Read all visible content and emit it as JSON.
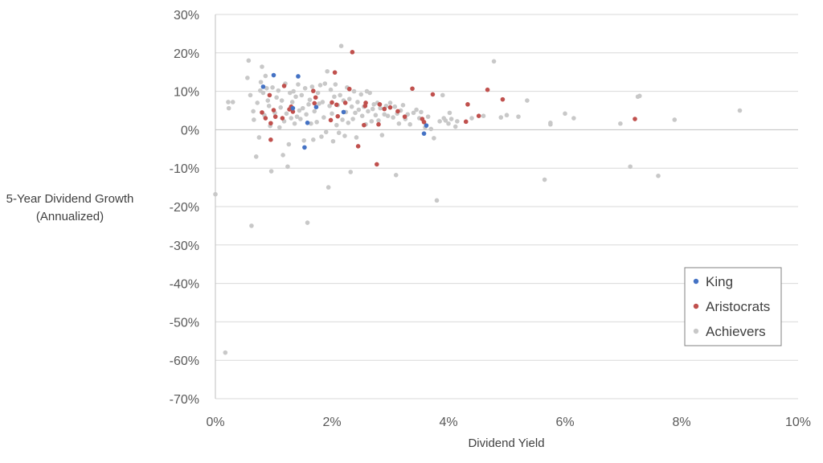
{
  "chart_data": {
    "type": "scatter",
    "xlabel": "Dividend Yield",
    "ylabel": [
      "5-Year Dividend Growth",
      "(Annualized)"
    ],
    "xlim": [
      0,
      10
    ],
    "ylim": [
      -70,
      30
    ],
    "x_ticks": [
      0,
      2,
      4,
      6,
      8,
      10
    ],
    "x_tick_labels": [
      "0%",
      "2%",
      "4%",
      "6%",
      "8%",
      "10%"
    ],
    "y_ticks": [
      30,
      20,
      10,
      0,
      -10,
      -20,
      -30,
      -40,
      -50,
      -60,
      -70
    ],
    "y_tick_labels": [
      "30%",
      "20%",
      "10%",
      "0%",
      "-10%",
      "-20%",
      "-30%",
      "-40%",
      "-50%",
      "-60%",
      "-70%"
    ],
    "grid": "horizontal",
    "legend_position": "bottom-right",
    "series": [
      {
        "name": "King",
        "color": "#4472C4",
        "points": [
          [
            0.82,
            11.2
          ],
          [
            1.0,
            14.2
          ],
          [
            1.42,
            13.9
          ],
          [
            1.33,
            5.6
          ],
          [
            1.73,
            5.9
          ],
          [
            1.58,
            1.8
          ],
          [
            1.53,
            -4.6
          ],
          [
            2.2,
            4.6
          ],
          [
            3.58,
            -1.0
          ],
          [
            3.62,
            1.1
          ]
        ]
      },
      {
        "name": "Aristocrats",
        "color": "#C0504D",
        "points": [
          [
            0.8,
            4.5
          ],
          [
            0.86,
            3.0
          ],
          [
            0.93,
            9.0
          ],
          [
            0.95,
            1.7
          ],
          [
            0.95,
            -2.6
          ],
          [
            1.0,
            5.1
          ],
          [
            1.03,
            3.4
          ],
          [
            1.15,
            3.0
          ],
          [
            1.18,
            11.4
          ],
          [
            1.27,
            5.3
          ],
          [
            1.3,
            6.0
          ],
          [
            1.33,
            4.7
          ],
          [
            1.68,
            10.1
          ],
          [
            1.7,
            6.9
          ],
          [
            1.72,
            8.4
          ],
          [
            1.98,
            2.5
          ],
          [
            2.0,
            7.1
          ],
          [
            2.05,
            14.9
          ],
          [
            2.08,
            6.5
          ],
          [
            2.1,
            3.5
          ],
          [
            2.23,
            7.0
          ],
          [
            2.3,
            10.6
          ],
          [
            2.35,
            20.2
          ],
          [
            2.45,
            -4.3
          ],
          [
            2.55,
            1.2
          ],
          [
            2.57,
            6.2
          ],
          [
            2.58,
            7.0
          ],
          [
            2.77,
            -9.0
          ],
          [
            2.8,
            1.4
          ],
          [
            2.82,
            6.6
          ],
          [
            2.9,
            5.4
          ],
          [
            3.0,
            5.8
          ],
          [
            3.13,
            4.8
          ],
          [
            3.25,
            3.4
          ],
          [
            3.38,
            10.7
          ],
          [
            3.55,
            2.8
          ],
          [
            3.58,
            2.0
          ],
          [
            3.73,
            9.2
          ],
          [
            4.3,
            2.1
          ],
          [
            4.33,
            6.6
          ],
          [
            4.52,
            3.6
          ],
          [
            4.67,
            10.4
          ],
          [
            4.93,
            7.9
          ],
          [
            7.2,
            2.8
          ]
        ]
      },
      {
        "name": "Achievers",
        "color": "#C8C8C8",
        "points": [
          [
            0.0,
            -16.8
          ],
          [
            0.17,
            -58.0
          ],
          [
            0.23,
            5.6
          ],
          [
            0.22,
            7.2
          ],
          [
            0.3,
            7.2
          ],
          [
            0.55,
            13.5
          ],
          [
            0.57,
            18.0
          ],
          [
            0.6,
            9.0
          ],
          [
            0.62,
            -25.0
          ],
          [
            0.65,
            4.8
          ],
          [
            0.66,
            2.6
          ],
          [
            0.7,
            -7.0
          ],
          [
            0.72,
            7.0
          ],
          [
            0.75,
            -2.0
          ],
          [
            0.77,
            10.2
          ],
          [
            0.78,
            12.4
          ],
          [
            0.8,
            16.4
          ],
          [
            0.82,
            9.6
          ],
          [
            0.84,
            3.8
          ],
          [
            0.86,
            14.0
          ],
          [
            0.88,
            10.8
          ],
          [
            0.9,
            7.6
          ],
          [
            0.92,
            6.2
          ],
          [
            0.94,
            1.0
          ],
          [
            0.96,
            -10.8
          ],
          [
            0.98,
            11.0
          ],
          [
            1.02,
            4.4
          ],
          [
            1.05,
            8.4
          ],
          [
            1.08,
            10.2
          ],
          [
            1.1,
            0.6
          ],
          [
            1.12,
            5.8
          ],
          [
            1.14,
            7.6
          ],
          [
            1.16,
            -6.6
          ],
          [
            1.18,
            2.2
          ],
          [
            1.2,
            12.0
          ],
          [
            1.22,
            4.2
          ],
          [
            1.24,
            -9.6
          ],
          [
            1.26,
            -3.8
          ],
          [
            1.28,
            9.6
          ],
          [
            1.3,
            3.0
          ],
          [
            1.32,
            7.2
          ],
          [
            1.34,
            10.0
          ],
          [
            1.36,
            1.6
          ],
          [
            1.38,
            8.6
          ],
          [
            1.4,
            3.4
          ],
          [
            1.42,
            11.8
          ],
          [
            1.44,
            5.0
          ],
          [
            1.46,
            2.8
          ],
          [
            1.48,
            9.0
          ],
          [
            1.5,
            5.6
          ],
          [
            1.52,
            -2.8
          ],
          [
            1.54,
            10.8
          ],
          [
            1.56,
            4.0
          ],
          [
            1.58,
            -24.2
          ],
          [
            1.6,
            6.6
          ],
          [
            1.62,
            7.8
          ],
          [
            1.64,
            1.6
          ],
          [
            1.66,
            11.2
          ],
          [
            1.68,
            -2.6
          ],
          [
            1.7,
            4.8
          ],
          [
            1.74,
            2.0
          ],
          [
            1.76,
            9.6
          ],
          [
            1.78,
            6.8
          ],
          [
            1.8,
            11.6
          ],
          [
            1.82,
            -1.8
          ],
          [
            1.84,
            7.2
          ],
          [
            1.86,
            3.2
          ],
          [
            1.88,
            12.0
          ],
          [
            1.9,
            -0.6
          ],
          [
            1.92,
            15.2
          ],
          [
            1.94,
            -15.0
          ],
          [
            1.96,
            6.2
          ],
          [
            1.98,
            10.4
          ],
          [
            2.0,
            4.2
          ],
          [
            2.02,
            -3.0
          ],
          [
            2.04,
            8.6
          ],
          [
            2.06,
            11.8
          ],
          [
            2.08,
            1.2
          ],
          [
            2.1,
            6.4
          ],
          [
            2.12,
            -0.8
          ],
          [
            2.14,
            9.0
          ],
          [
            2.16,
            21.8
          ],
          [
            2.18,
            2.6
          ],
          [
            2.2,
            7.6
          ],
          [
            2.22,
            -1.6
          ],
          [
            2.24,
            4.6
          ],
          [
            2.26,
            11.0
          ],
          [
            2.28,
            1.8
          ],
          [
            2.3,
            8.0
          ],
          [
            2.32,
            -11.0
          ],
          [
            2.34,
            6.0
          ],
          [
            2.36,
            2.8
          ],
          [
            2.38,
            10.0
          ],
          [
            2.4,
            4.4
          ],
          [
            2.42,
            -2.0
          ],
          [
            2.44,
            7.2
          ],
          [
            2.46,
            5.2
          ],
          [
            2.5,
            9.2
          ],
          [
            2.52,
            3.6
          ],
          [
            2.55,
            6.0
          ],
          [
            2.58,
            1.4
          ],
          [
            2.6,
            10.0
          ],
          [
            2.62,
            4.8
          ],
          [
            2.65,
            9.6
          ],
          [
            2.68,
            2.2
          ],
          [
            2.7,
            5.4
          ],
          [
            2.72,
            6.6
          ],
          [
            2.75,
            3.8
          ],
          [
            2.78,
            7.0
          ],
          [
            2.8,
            2.4
          ],
          [
            2.83,
            5.6
          ],
          [
            2.86,
            -1.4
          ],
          [
            2.9,
            4.0
          ],
          [
            2.93,
            6.2
          ],
          [
            2.96,
            3.6
          ],
          [
            3.0,
            7.0
          ],
          [
            3.05,
            3.2
          ],
          [
            3.08,
            6.0
          ],
          [
            3.1,
            -11.8
          ],
          [
            3.12,
            4.2
          ],
          [
            3.15,
            1.6
          ],
          [
            3.18,
            5.0
          ],
          [
            3.22,
            6.4
          ],
          [
            3.26,
            2.8
          ],
          [
            3.3,
            4.0
          ],
          [
            3.34,
            1.4
          ],
          [
            3.4,
            4.4
          ],
          [
            3.45,
            5.2
          ],
          [
            3.5,
            3.0
          ],
          [
            3.53,
            4.6
          ],
          [
            3.6,
            0.6
          ],
          [
            3.65,
            3.4
          ],
          [
            3.7,
            0.2
          ],
          [
            3.75,
            -2.2
          ],
          [
            3.8,
            -18.4
          ],
          [
            3.85,
            2.2
          ],
          [
            3.9,
            9.0
          ],
          [
            3.92,
            3.0
          ],
          [
            3.95,
            2.4
          ],
          [
            4.0,
            1.6
          ],
          [
            4.02,
            4.4
          ],
          [
            4.05,
            2.8
          ],
          [
            4.12,
            0.8
          ],
          [
            4.15,
            2.2
          ],
          [
            4.4,
            3.0
          ],
          [
            4.6,
            3.6
          ],
          [
            4.78,
            17.8
          ],
          [
            4.9,
            3.2
          ],
          [
            5.0,
            3.8
          ],
          [
            5.2,
            3.4
          ],
          [
            5.35,
            7.6
          ],
          [
            5.65,
            -13.0
          ],
          [
            5.75,
            1.4
          ],
          [
            5.75,
            1.8
          ],
          [
            6.0,
            4.2
          ],
          [
            6.15,
            3.0
          ],
          [
            6.95,
            1.6
          ],
          [
            7.12,
            -9.6
          ],
          [
            7.25,
            8.6
          ],
          [
            7.28,
            8.8
          ],
          [
            7.6,
            -12.0
          ],
          [
            7.88,
            2.6
          ],
          [
            9.0,
            5.0
          ]
        ]
      }
    ]
  }
}
